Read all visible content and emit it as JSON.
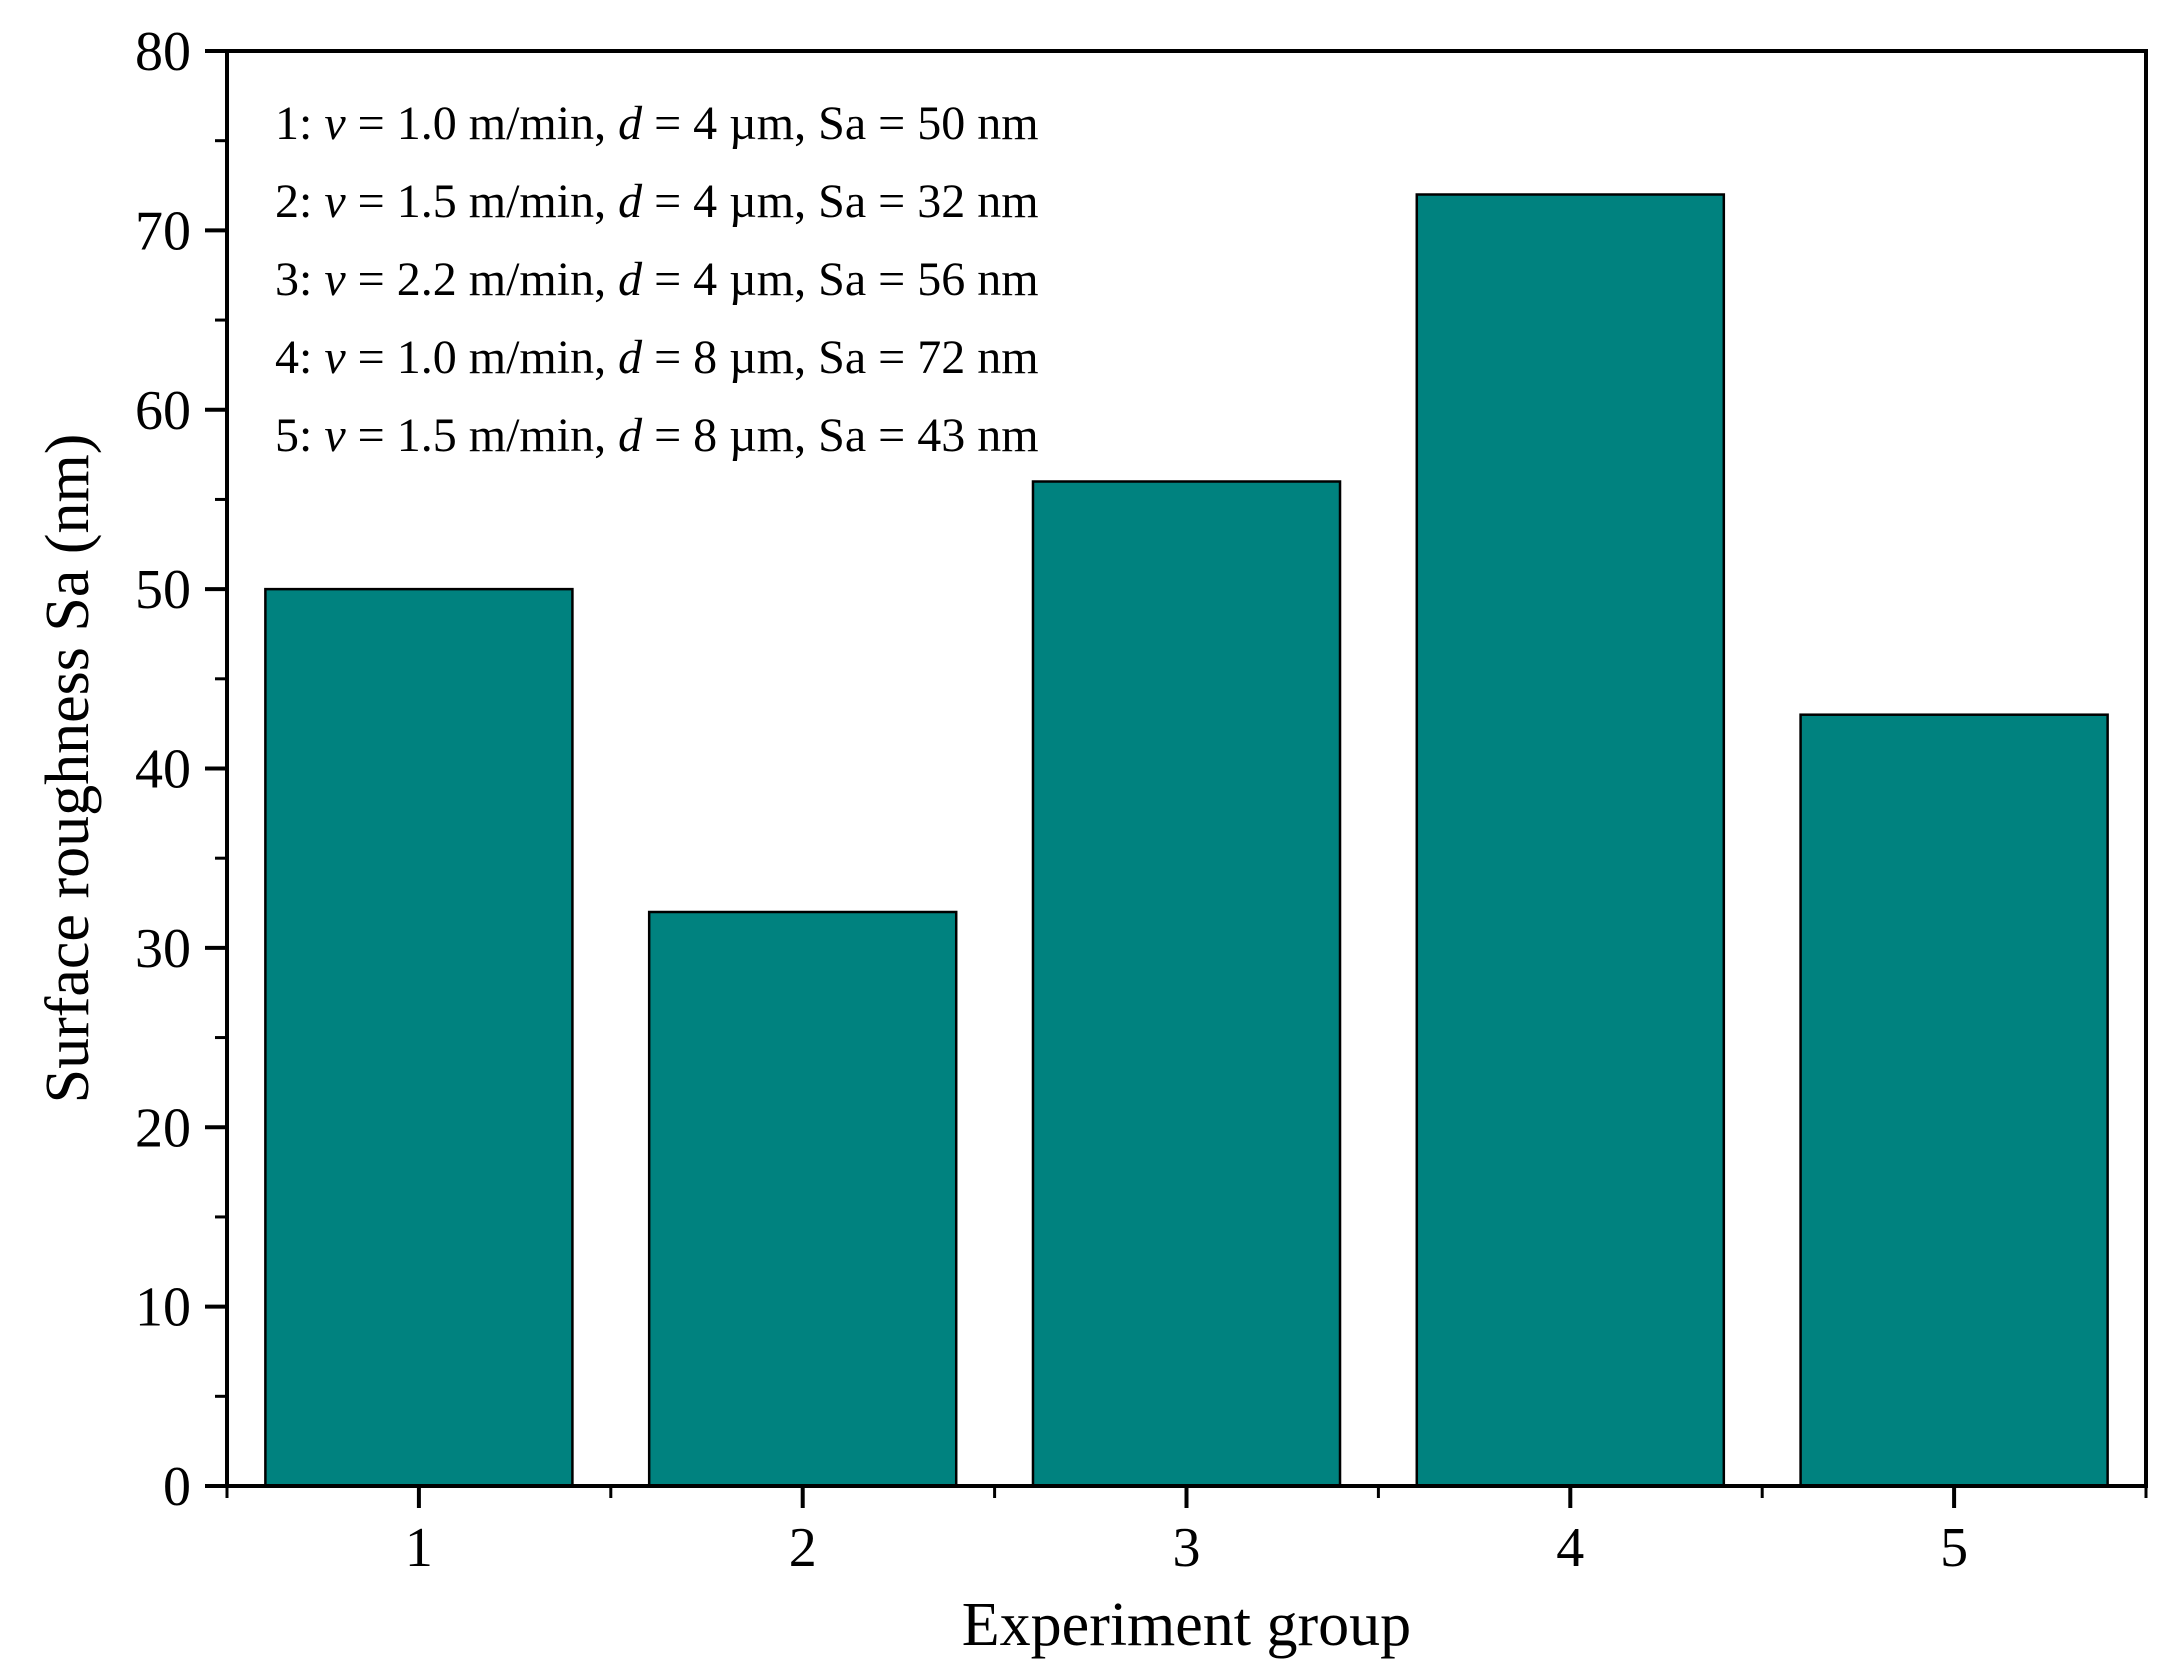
{
  "chart_data": {
    "type": "bar",
    "title": "",
    "xlabel": "Experiment group",
    "ylabel": "Surface roughness Sa (nm)",
    "categories": [
      "1",
      "2",
      "3",
      "4",
      "5"
    ],
    "values": [
      50,
      32,
      56,
      72,
      43
    ],
    "ylim": [
      0,
      80
    ],
    "yticks": [
      "0",
      "10",
      "20",
      "30",
      "40",
      "50",
      "60",
      "70",
      "80"
    ],
    "grid": false,
    "bar_color": "#00827F",
    "annotations": [
      {
        "group": "1:",
        "v_sym": "v",
        "v_val": " = 1.0 m/min, ",
        "d_sym": "d",
        "d_val": " = 4 µm, Sa = 50 nm"
      },
      {
        "group": "2:",
        "v_sym": "v",
        "v_val": " = 1.5 m/min, ",
        "d_sym": "d",
        "d_val": " = 4 µm, Sa = 32 nm"
      },
      {
        "group": "3:",
        "v_sym": "v",
        "v_val": " = 2.2 m/min, ",
        "d_sym": "d",
        "d_val": " = 4 µm, Sa = 56 nm"
      },
      {
        "group": "4:",
        "v_sym": "v",
        "v_val": " = 1.0 m/min, ",
        "d_sym": "d",
        "d_val": " = 8 µm, Sa = 72 nm"
      },
      {
        "group": "5:",
        "v_sym": "v",
        "v_val": " = 1.5 m/min, ",
        "d_sym": "d",
        "d_val": " = 8 µm, Sa = 43 nm"
      }
    ]
  }
}
